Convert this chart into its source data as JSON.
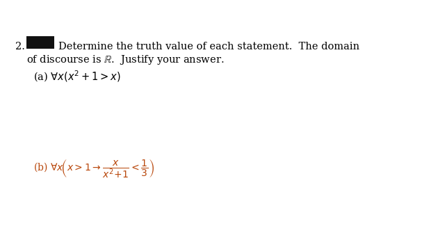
{
  "bg_color": "#ffffff",
  "fig_width": 6.27,
  "fig_height": 3.42,
  "dpi": 100,
  "line1_text": "Determine the truth value of each statement.  The domain",
  "line2_text": "of discourse is $\\mathbb{R}$.  Justify your answer.",
  "part_a_color": "#000000",
  "part_b_color": "#b8460a",
  "font_main": 10.5,
  "font_math_a": 10.5,
  "font_math_b": 10.0
}
